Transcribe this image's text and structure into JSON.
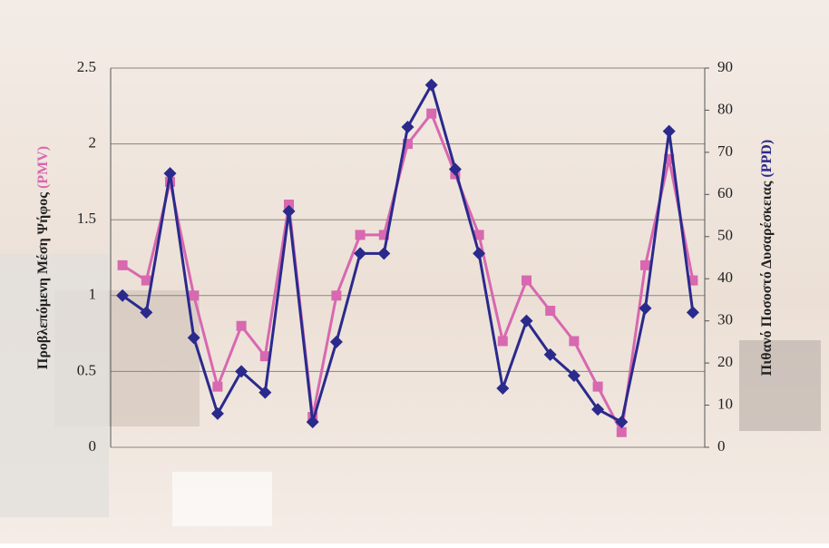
{
  "chart_data": {
    "type": "line",
    "categories": [
      null,
      null,
      null,
      null,
      null,
      null,
      null,
      null,
      null,
      null,
      null,
      null,
      null,
      null,
      null,
      null,
      null,
      null,
      null,
      null,
      null,
      null,
      null,
      null,
      null
    ],
    "y_label": "Προβλεπόμενη Μέση Ψήφος",
    "y_label_unit": "(PMV)",
    "y2_label": "Πιθανό Ποσοστό Δυσαρέσκειας",
    "y2_label_unit": "(PPD)",
    "ylim": [
      0,
      2.5
    ],
    "yticks": [
      0,
      0.5,
      1,
      1.5,
      2,
      2.5
    ],
    "y2lim": [
      0,
      90
    ],
    "y2ticks": [
      0,
      10,
      20,
      30,
      40,
      50,
      60,
      70,
      80,
      90
    ],
    "grid": true,
    "series": [
      {
        "name": "PMV",
        "color": "#d868b0",
        "marker": "square",
        "values": [
          1.2,
          1.1,
          1.75,
          1.0,
          0.4,
          0.8,
          0.6,
          1.6,
          0.2,
          1.0,
          1.4,
          1.4,
          2.0,
          2.2,
          1.8,
          1.4,
          0.7,
          1.1,
          0.9,
          0.7,
          0.4,
          0.1,
          1.2,
          1.9,
          1.1
        ]
      },
      {
        "name": "PPD",
        "color": "#2a2a8c",
        "marker": "diamond",
        "axis": "y2",
        "values": [
          36,
          32,
          65,
          26,
          8,
          18,
          13,
          56,
          6,
          25,
          46,
          46,
          76,
          86,
          66,
          46,
          14,
          30,
          22,
          17,
          9,
          6,
          33,
          75,
          32
        ]
      }
    ]
  }
}
